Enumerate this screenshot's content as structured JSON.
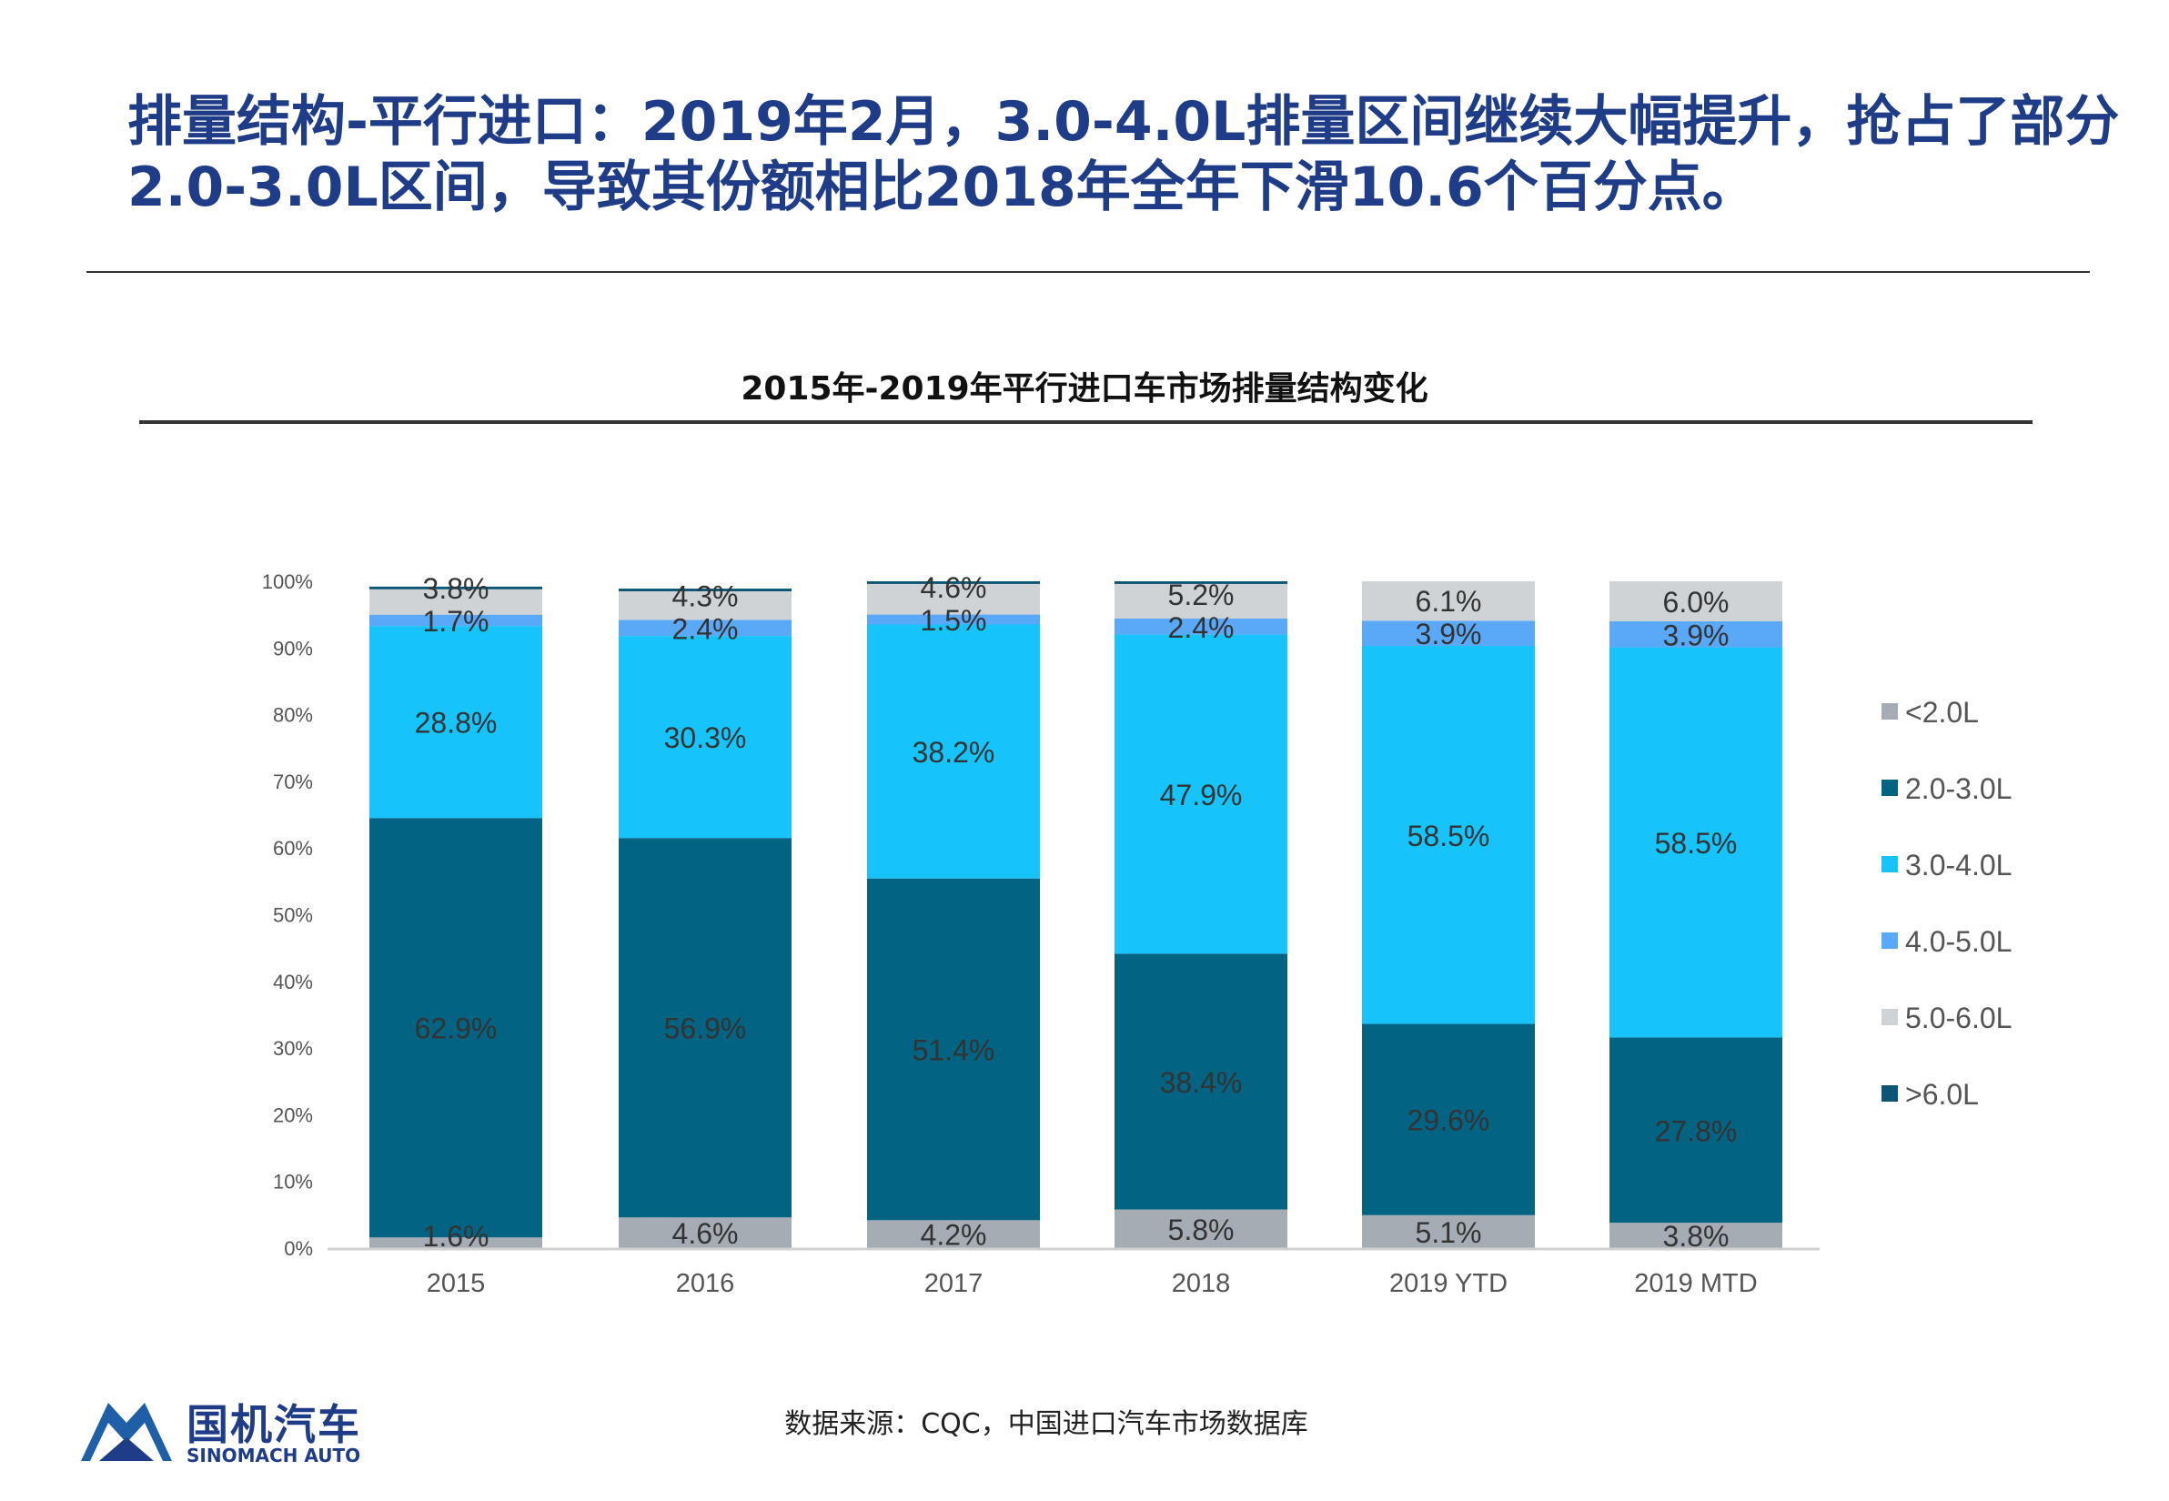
{
  "headline": "排量结构-平行进口：2019年2月，3.0-4.0L排量区间继续大幅提升，抢占了部分2.0-3.0L区间，导致其份额相比2018年全年下滑10.6个百分点。",
  "source": "数据来源：CQC，中国进口汽车市场数据库",
  "logo": {
    "cn": "国机汽车",
    "en": "SINOMACH AUTO"
  },
  "chart_data": {
    "type": "bar",
    "stacked": true,
    "title": "2015年-2019年平行进口车市场排量结构变化",
    "categories": [
      "2015",
      "2016",
      "2017",
      "2018",
      "2019 YTD",
      "2019 MTD"
    ],
    "ylim": [
      0,
      100
    ],
    "yticks": [
      "0%",
      "10%",
      "20%",
      "30%",
      "40%",
      "50%",
      "60%",
      "70%",
      "80%",
      "90%",
      "100%"
    ],
    "legend_position": "right",
    "grid": false,
    "series": [
      {
        "name": "<2.0L",
        "color": "#a5acb3",
        "values": [
          1.6,
          4.6,
          4.2,
          5.8,
          5.1,
          3.8
        ],
        "labels": [
          "1.6%",
          "4.6%",
          "4.2%",
          "5.8%",
          "5.1%",
          "3.8%"
        ]
      },
      {
        "name": "2.0-3.0L",
        "color": "#036383",
        "values": [
          62.9,
          56.9,
          51.4,
          38.4,
          29.6,
          27.8
        ],
        "labels": [
          "62.9%",
          "56.9%",
          "51.4%",
          "38.4%",
          "29.6%",
          "27.8%"
        ]
      },
      {
        "name": "3.0-4.0L",
        "color": "#16c3fb",
        "values": [
          28.8,
          30.3,
          38.2,
          47.9,
          58.5,
          58.5
        ],
        "labels": [
          "28.8%",
          "30.3%",
          "38.2%",
          "47.9%",
          "58.5%",
          "58.5%"
        ]
      },
      {
        "name": "4.0-5.0L",
        "color": "#5aa8f8",
        "values": [
          1.7,
          2.4,
          1.5,
          2.4,
          3.9,
          3.9
        ],
        "labels": [
          "1.7%",
          "2.4%",
          "1.5%",
          "2.4%",
          "3.9%",
          "3.9%"
        ]
      },
      {
        "name": "5.0-6.0L",
        "color": "#d0d3d6",
        "values": [
          3.8,
          4.3,
          4.6,
          5.2,
          6.1,
          6.0
        ],
        "labels": [
          "3.8%",
          "4.3%",
          "4.6%",
          "5.2%",
          "6.1%",
          "6.0%"
        ]
      },
      {
        "name": ">6.0L",
        "color": "#0d5577",
        "values": [
          0.4,
          0.4,
          0.4,
          0.4,
          0,
          0
        ],
        "labels": []
      }
    ]
  }
}
